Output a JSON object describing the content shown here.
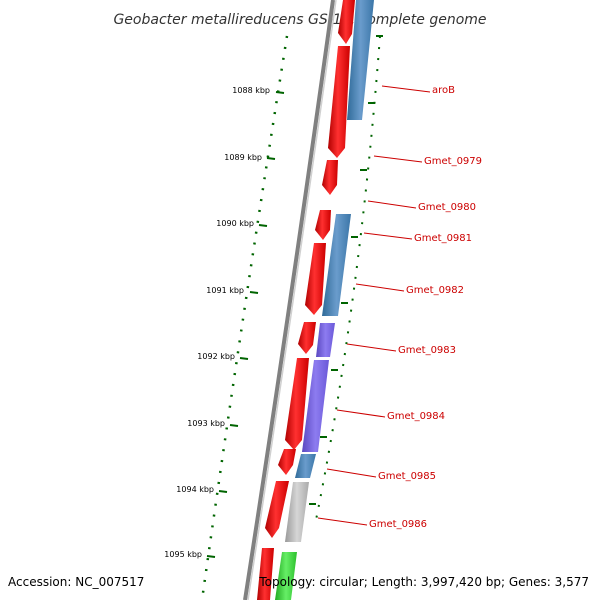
{
  "title": "Geobacter metallireducens GS-15, complete genome",
  "footer": {
    "accession": "Accession: NC_007517",
    "summary": "Topology: circular; Length: 3,997,420 bp; Genes: 3,577"
  },
  "scale_ticks": [
    "1088 kbp",
    "1089 kbp",
    "1090 kbp",
    "1091 kbp",
    "1092 kbp",
    "1093 kbp",
    "1094 kbp",
    "1095 kbp"
  ],
  "gene_labels": [
    "aroB",
    "Gmet_0979",
    "Gmet_0980",
    "Gmet_0981",
    "Gmet_0982",
    "Gmet_0983",
    "Gmet_0984",
    "Gmet_0985",
    "Gmet_0986"
  ],
  "colors": {
    "cds_forward": "#ff0000",
    "cog_blue": "#4682b4",
    "cog_purple": "#7b68ee",
    "cog_gray": "#b4b4b4",
    "cog_green": "#32cd32",
    "backbone": "#808080",
    "tick_green": "#006400",
    "label_red": "#cc0000"
  }
}
